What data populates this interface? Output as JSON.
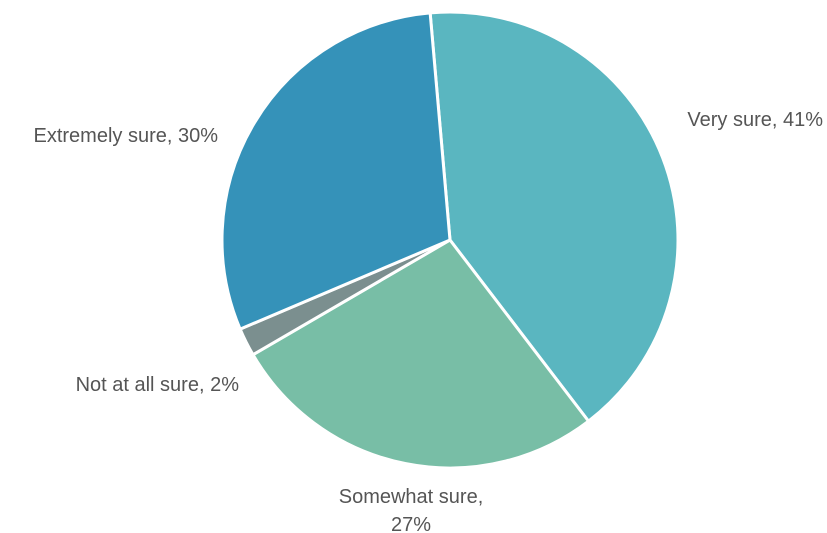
{
  "chart_data": {
    "type": "pie",
    "title": "",
    "slices": [
      {
        "label": "Very sure, 41%",
        "label_lines": [
          "Very sure, 41%"
        ],
        "category": "Very sure",
        "value": 41,
        "color": "#5ab6c0"
      },
      {
        "label": "Somewhat sure, 27%",
        "label_lines": [
          "Somewhat sure,",
          "27%"
        ],
        "category": "Somewhat sure",
        "value": 27,
        "color": "#78bea6"
      },
      {
        "label": "Not at all sure, 2%",
        "label_lines": [
          "Not at all sure, 2%"
        ],
        "category": "Not at all sure",
        "value": 2,
        "color": "#7b8f8f"
      },
      {
        "label": "Extremely sure, 30%",
        "label_lines": [
          "Extremely sure, 30%"
        ],
        "category": "Extremely sure",
        "value": 30,
        "color": "#3592b9"
      }
    ],
    "start_angle_deg": -5,
    "direction": "clockwise",
    "legend": "none",
    "label_color": "#555555",
    "separator_color": "#ffffff"
  }
}
